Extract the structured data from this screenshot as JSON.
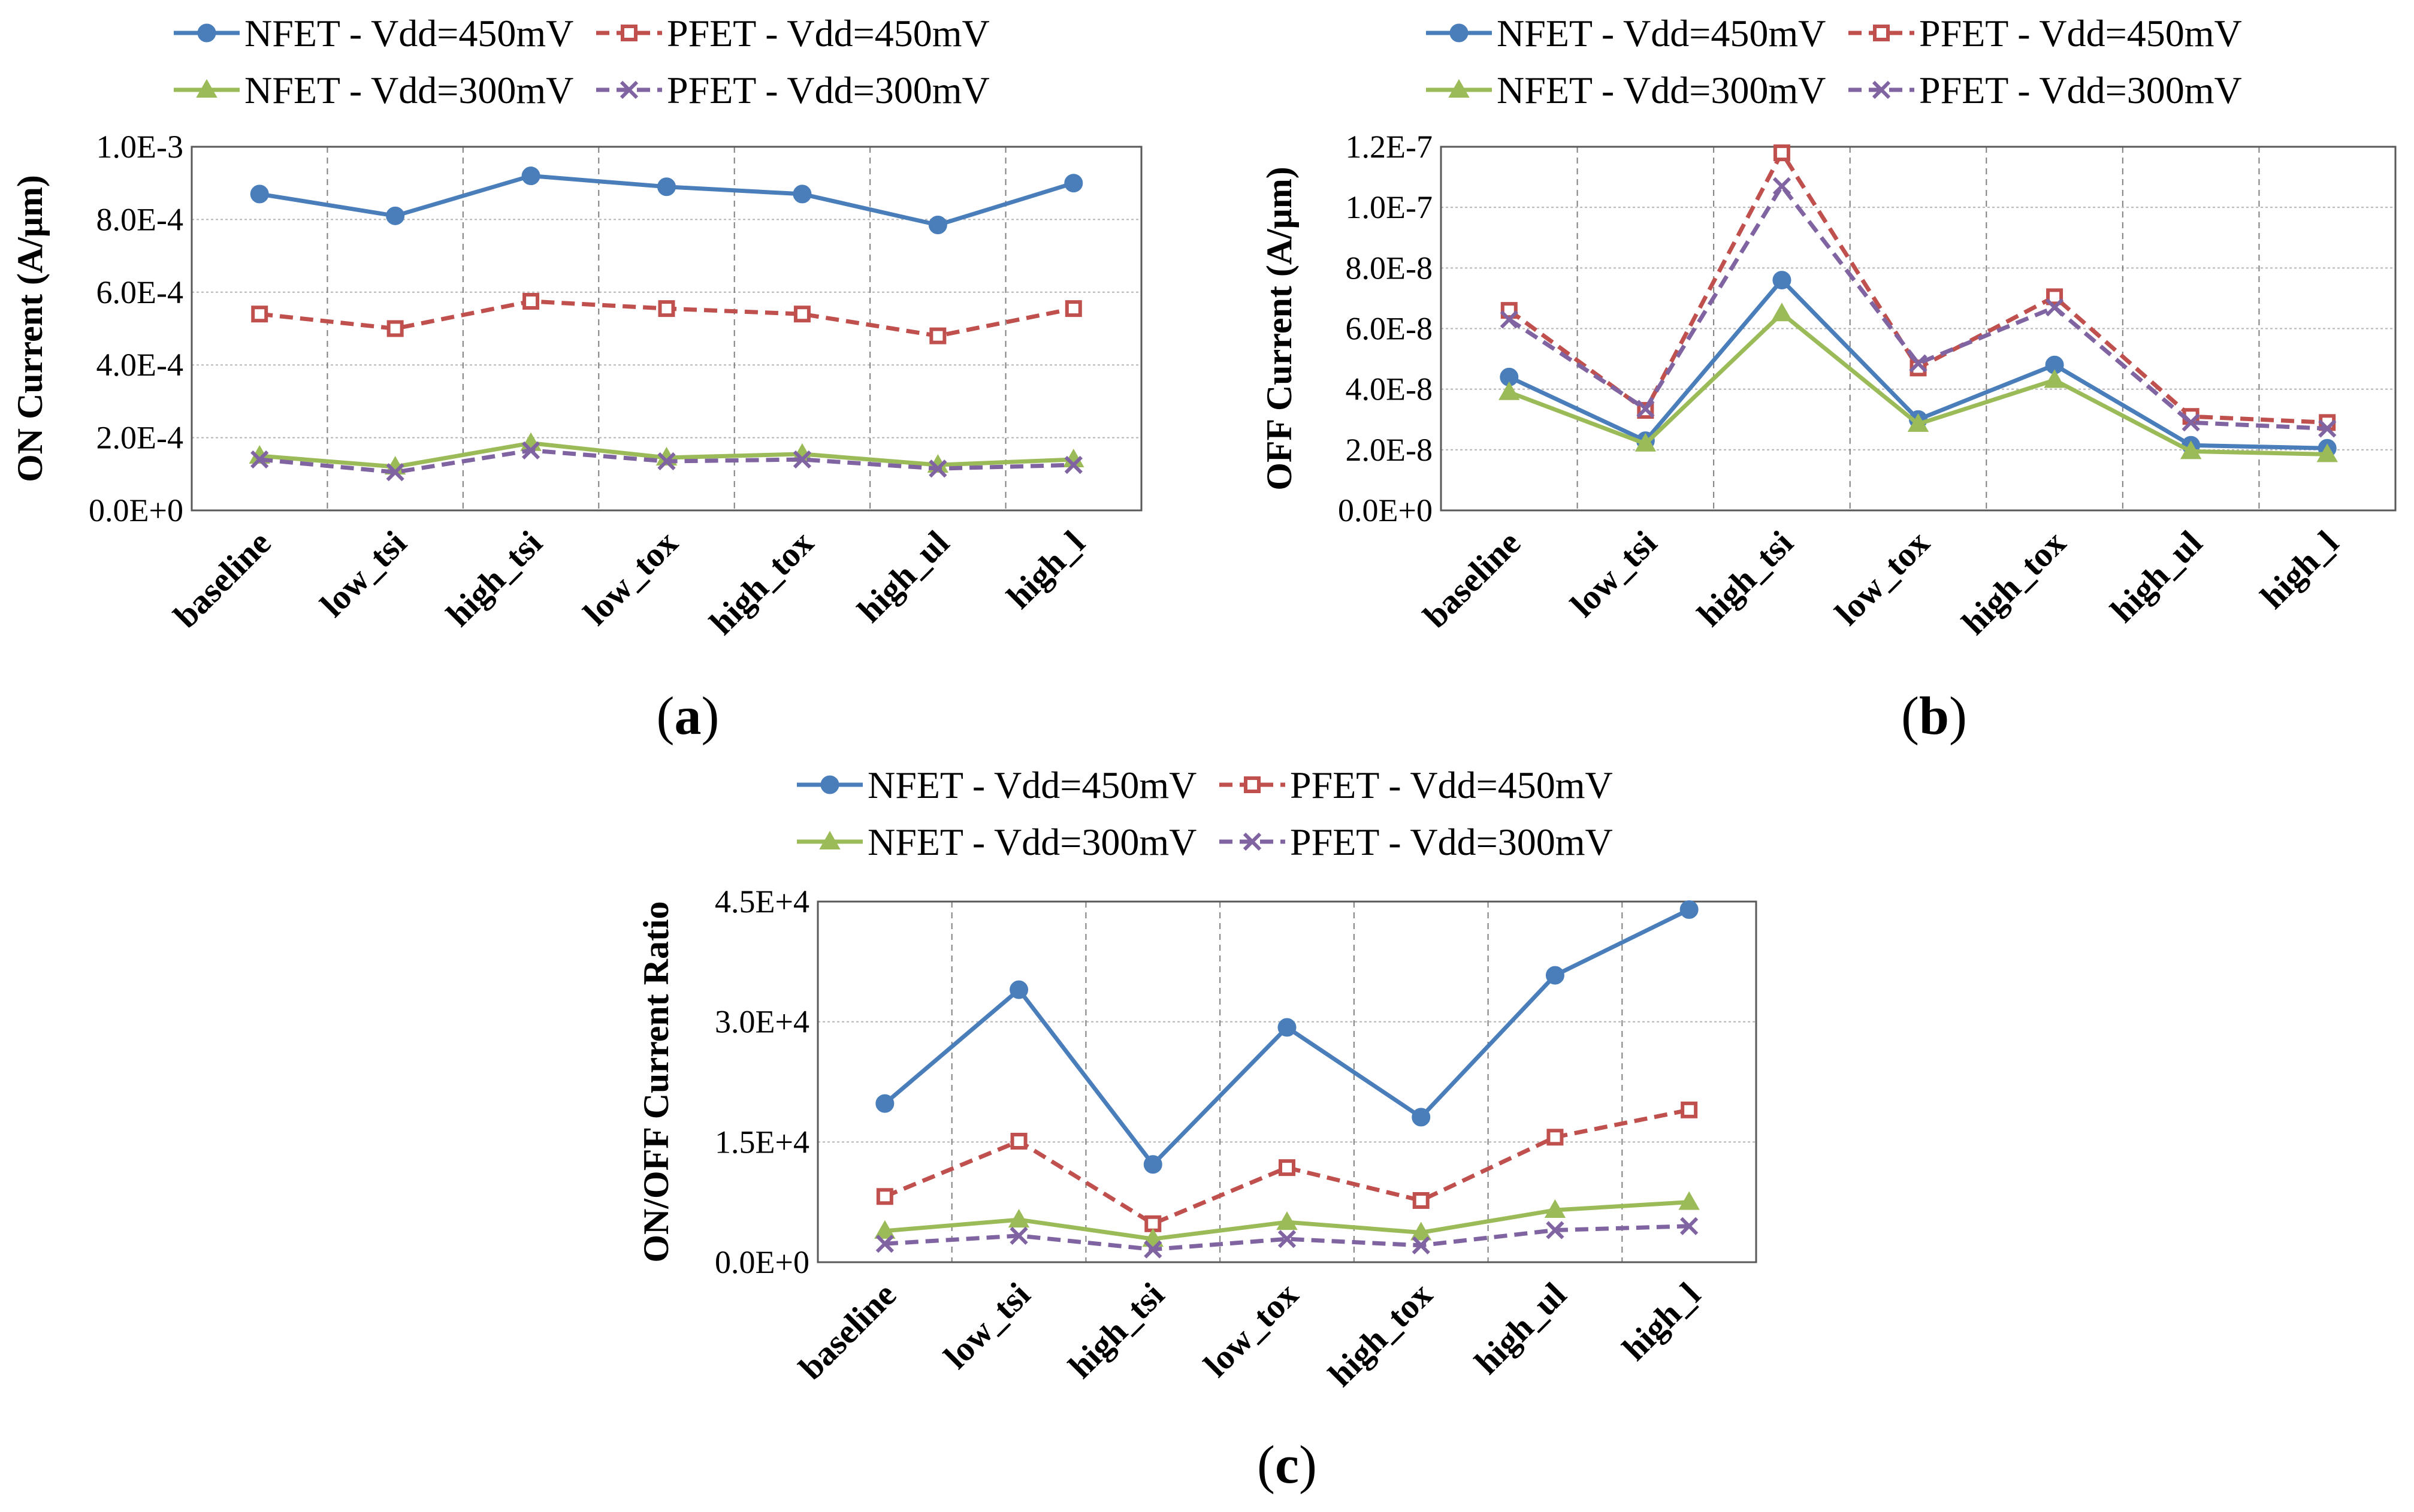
{
  "figure": {
    "series": [
      {
        "key": "n450",
        "name": "NFET - Vdd=450mV",
        "color": "#4a7ebb",
        "marker": "circle",
        "dash": false
      },
      {
        "key": "p450",
        "name": "PFET - Vdd=450mV",
        "color": "#c0504d",
        "marker": "square",
        "dash": true
      },
      {
        "key": "n300",
        "name": "NFET - Vdd=300mV",
        "color": "#9bbb59",
        "marker": "triangle",
        "dash": false
      },
      {
        "key": "p300",
        "name": "PFET - Vdd=300mV",
        "color": "#8064a2",
        "marker": "x",
        "dash": true
      }
    ]
  },
  "chart_data": [
    {
      "id": "a",
      "type": "line",
      "caption_letter": "a",
      "ylabel": "ON Current (A/μm)",
      "categories": [
        "baseline",
        "low_tsi",
        "high_tsi",
        "low_tox",
        "high_tox",
        "high_ul",
        "high_l"
      ],
      "ylim": [
        0,
        0.001
      ],
      "yticks": [
        {
          "value": 0,
          "label": "0.0E+0"
        },
        {
          "value": 0.0002,
          "label": "2.0E-4"
        },
        {
          "value": 0.0004,
          "label": "4.0E-4"
        },
        {
          "value": 0.0006,
          "label": "6.0E-4"
        },
        {
          "value": 0.0008,
          "label": "8.0E-4"
        },
        {
          "value": 0.001,
          "label": "1.0E-3"
        }
      ],
      "series": [
        {
          "key": "n450",
          "values": [
            0.00087,
            0.00081,
            0.00092,
            0.00089,
            0.00087,
            0.000785,
            0.0009
          ]
        },
        {
          "key": "p450",
          "values": [
            0.00054,
            0.0005,
            0.000575,
            0.000555,
            0.00054,
            0.00048,
            0.000555
          ]
        },
        {
          "key": "n300",
          "values": [
            0.00015,
            0.00012,
            0.000185,
            0.000145,
            0.000155,
            0.000125,
            0.00014
          ]
        },
        {
          "key": "p300",
          "values": [
            0.00014,
            0.000105,
            0.000165,
            0.000135,
            0.00014,
            0.000115,
            0.000125
          ]
        }
      ]
    },
    {
      "id": "b",
      "type": "line",
      "caption_letter": "b",
      "ylabel": "OFF Current (A/μm)",
      "categories": [
        "baseline",
        "low_tsi",
        "high_tsi",
        "low_tox",
        "high_tox",
        "high_ul",
        "high_l"
      ],
      "ylim": [
        0,
        1.2e-07
      ],
      "yticks": [
        {
          "value": 0,
          "label": "0.0E+0"
        },
        {
          "value": 2e-08,
          "label": "2.0E-8"
        },
        {
          "value": 4e-08,
          "label": "4.0E-8"
        },
        {
          "value": 6e-08,
          "label": "6.0E-8"
        },
        {
          "value": 8e-08,
          "label": "8.0E-8"
        },
        {
          "value": 1e-07,
          "label": "1.0E-7"
        },
        {
          "value": 1.2e-07,
          "label": "1.2E-7"
        }
      ],
      "series": [
        {
          "key": "n450",
          "values": [
            4.4e-08,
            2.3e-08,
            7.6e-08,
            3e-08,
            4.8e-08,
            2.15e-08,
            2.05e-08
          ]
        },
        {
          "key": "p450",
          "values": [
            6.6e-08,
            3.3e-08,
            1.18e-07,
            4.7e-08,
            7.05e-08,
            3.1e-08,
            2.9e-08
          ]
        },
        {
          "key": "n300",
          "values": [
            3.9e-08,
            2.2e-08,
            6.5e-08,
            2.85e-08,
            4.3e-08,
            1.95e-08,
            1.85e-08
          ]
        },
        {
          "key": "p300",
          "values": [
            6.3e-08,
            3.35e-08,
            1.07e-07,
            4.85e-08,
            6.7e-08,
            2.9e-08,
            2.7e-08
          ]
        }
      ]
    },
    {
      "id": "c",
      "type": "line",
      "caption_letter": "c",
      "ylabel": "ON/OFF Current Ratio",
      "categories": [
        "baseline",
        "low_tsi",
        "high_tsi",
        "low_tox",
        "high_tox",
        "high_ul",
        "high_l"
      ],
      "ylim": [
        0,
        45000
      ],
      "yticks": [
        {
          "value": 0,
          "label": "0.0E+0"
        },
        {
          "value": 15000,
          "label": "1.5E+4"
        },
        {
          "value": 30000,
          "label": "3.0E+4"
        },
        {
          "value": 45000,
          "label": "4.5E+4"
        }
      ],
      "series": [
        {
          "key": "n450",
          "values": [
            19800,
            34000,
            12200,
            29300,
            18100,
            35800,
            44000
          ]
        },
        {
          "key": "p450",
          "values": [
            8200,
            15100,
            4800,
            11800,
            7700,
            15600,
            19000
          ]
        },
        {
          "key": "n300",
          "values": [
            3900,
            5300,
            2900,
            5000,
            3700,
            6500,
            7500
          ]
        },
        {
          "key": "p300",
          "values": [
            2300,
            3300,
            1600,
            2900,
            2100,
            4000,
            4500
          ]
        }
      ]
    }
  ]
}
